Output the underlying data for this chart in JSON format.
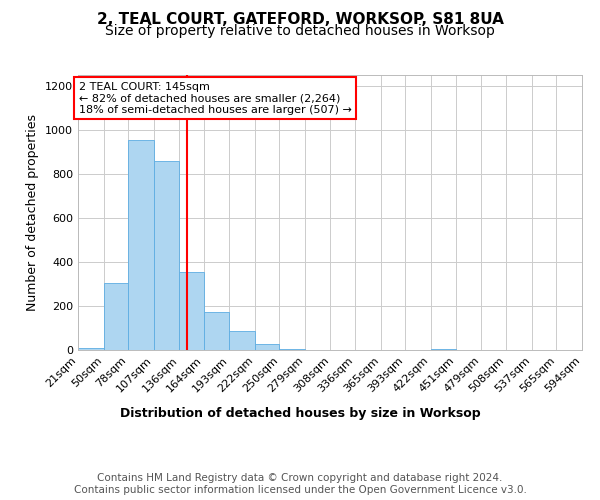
{
  "title": "2, TEAL COURT, GATEFORD, WORKSOP, S81 8UA",
  "subtitle": "Size of property relative to detached houses in Worksop",
  "xlabel": "Distribution of detached houses by size in Worksop",
  "ylabel": "Number of detached properties",
  "bin_edges": [
    21,
    50,
    78,
    107,
    136,
    164,
    193,
    222,
    250,
    279,
    308,
    336,
    365,
    393,
    422,
    451,
    479,
    508,
    537,
    565,
    594
  ],
  "bar_heights": [
    8,
    305,
    955,
    860,
    355,
    175,
    85,
    28,
    3,
    0,
    0,
    0,
    0,
    0,
    5,
    0,
    0,
    0,
    0,
    0
  ],
  "bar_color": "#AED6F1",
  "bar_edge_color": "#5DADE2",
  "vline_x": 145,
  "vline_color": "red",
  "annotation_line1": "2 TEAL COURT: 145sqm",
  "annotation_line2": "← 82% of detached houses are smaller (2,264)",
  "annotation_line3": "18% of semi-detached houses are larger (507) →",
  "ylim": [
    0,
    1250
  ],
  "yticks": [
    0,
    200,
    400,
    600,
    800,
    1000,
    1200
  ],
  "footer_text": "Contains HM Land Registry data © Crown copyright and database right 2024.\nContains public sector information licensed under the Open Government Licence v3.0.",
  "background_color": "#ffffff",
  "grid_color": "#cccccc",
  "title_fontsize": 11,
  "subtitle_fontsize": 10,
  "label_fontsize": 9,
  "tick_fontsize": 8,
  "annotation_fontsize": 8,
  "footer_fontsize": 7.5
}
